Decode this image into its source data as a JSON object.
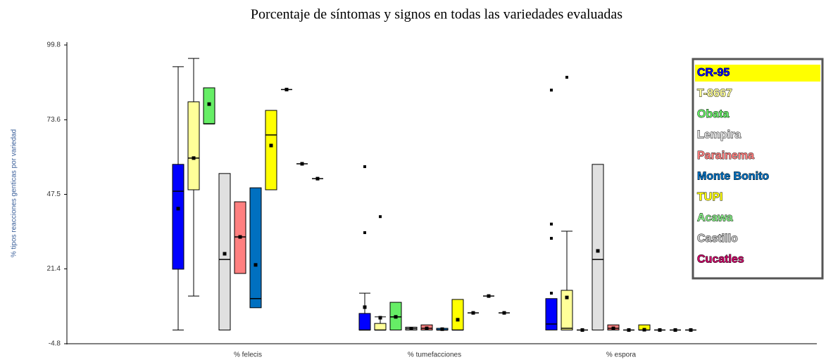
{
  "chart_data": {
    "type": "box",
    "title": "Porcentaje de síntomas y signos en todas las variedades evaluadas",
    "y_label": "% tipos reacciones genticas por variedad",
    "categories": [
      "% felecis",
      "% tumefacciones",
      "% espora"
    ],
    "ylim": [
      -4.8,
      99.8
    ],
    "yticks": [
      -4.8,
      21.4,
      47.5,
      73.6,
      99.8
    ],
    "series": [
      {
        "name": "CR-95",
        "color": "#0000ff",
        "boxes": [
          {
            "low": 0,
            "q1": 21.3,
            "median": 48.6,
            "q3": 58.0,
            "high": 92.2,
            "mean": 42.5,
            "outliers": []
          },
          {
            "low": 0,
            "q1": 0,
            "median": 0,
            "q3": 5.8,
            "high": 12.9,
            "mean": 8.0,
            "outliers": [
              57.2,
              34.1
            ]
          },
          {
            "low": 0,
            "q1": 0,
            "median": 2.1,
            "q3": 11.0,
            "high": 11.0,
            "mean": null,
            "outliers": [
              84.0,
              37.1,
              32.1,
              12.9
            ]
          }
        ]
      },
      {
        "name": "T-8667",
        "color": "#ffff99",
        "boxes": [
          {
            "low": 11.9,
            "q1": 49.1,
            "median": 60.2,
            "q3": 79.9,
            "high": 95.1,
            "mean": 60.2,
            "outliers": []
          },
          {
            "low": 0,
            "q1": 0,
            "median": 0,
            "q3": 2.3,
            "high": 4.6,
            "mean": 4.3,
            "outliers": [
              39.7
            ]
          },
          {
            "low": 0,
            "q1": 0,
            "median": 0.6,
            "q3": 13.9,
            "high": 34.6,
            "mean": 11.4,
            "outliers": [
              88.5
            ]
          }
        ]
      },
      {
        "name": "Obata",
        "color": "#66ee66",
        "boxes": [
          {
            "low": 72.2,
            "q1": 72.2,
            "median": 72.2,
            "q3": 84.8,
            "high": 84.8,
            "mean": 79.1,
            "outliers": []
          },
          {
            "low": 0,
            "q1": 0,
            "median": 4.6,
            "q3": 9.7,
            "high": 9.7,
            "mean": 4.6,
            "outliers": []
          },
          {
            "low": 0,
            "q1": 0,
            "median": 0,
            "q3": 0,
            "high": 0,
            "mean": 0,
            "outliers": []
          }
        ]
      },
      {
        "name": "Lempira",
        "color": "#e0e0e0",
        "boxes": [
          {
            "low": 0,
            "q1": 0,
            "median": 24.7,
            "q3": 54.8,
            "high": 54.8,
            "mean": 26.7,
            "outliers": []
          },
          {
            "low": 0,
            "q1": 0,
            "median": 0.5,
            "q3": 1.0,
            "high": 1.0,
            "mean": 0.5,
            "outliers": []
          },
          {
            "low": 0,
            "q1": 0,
            "median": 24.7,
            "q3": 58.0,
            "high": 58.0,
            "mean": 27.7,
            "outliers": []
          }
        ]
      },
      {
        "name": "Parainema",
        "color": "#ff8080",
        "boxes": [
          {
            "low": 19.8,
            "q1": 19.8,
            "median": 32.6,
            "q3": 44.9,
            "high": 44.9,
            "mean": 32.6,
            "outliers": []
          },
          {
            "low": 0,
            "q1": 0,
            "median": 0.6,
            "q3": 1.8,
            "high": 1.8,
            "mean": 0.6,
            "outliers": []
          },
          {
            "low": 0,
            "q1": 0,
            "median": 0.6,
            "q3": 1.8,
            "high": 1.8,
            "mean": 0.6,
            "outliers": []
          }
        ]
      },
      {
        "name": "Monte Bonito",
        "color": "#0070c0",
        "boxes": [
          {
            "low": 7.8,
            "q1": 7.8,
            "median": 11.0,
            "q3": 49.8,
            "high": 49.8,
            "mean": 22.8,
            "outliers": []
          },
          {
            "low": 0,
            "q1": 0,
            "median": 0,
            "q3": 0.6,
            "high": 0.6,
            "mean": 0.3,
            "outliers": []
          },
          {
            "low": 0,
            "q1": 0,
            "median": 0,
            "q3": 0,
            "high": 0,
            "mean": 0,
            "outliers": []
          }
        ]
      },
      {
        "name": "TUPI",
        "color": "#ffff00",
        "boxes": [
          {
            "low": 49.1,
            "q1": 49.1,
            "median": 68.3,
            "q3": 76.9,
            "high": 76.9,
            "mean": 64.6,
            "outliers": []
          },
          {
            "low": 0,
            "q1": 0,
            "median": 0,
            "q3": 10.7,
            "high": 10.7,
            "mean": 3.6,
            "outliers": []
          },
          {
            "low": 0,
            "q1": 0,
            "median": 0,
            "q3": 1.8,
            "high": 1.8,
            "mean": 0.1,
            "outliers": []
          }
        ]
      },
      {
        "name": "Acawa",
        "color": "#88ee88",
        "boxes": [
          {
            "low": 84.2,
            "q1": 84.2,
            "median": 84.2,
            "q3": 84.2,
            "high": 84.2,
            "mean": 84.2,
            "outliers": []
          },
          {
            "low": 6.0,
            "q1": 6.0,
            "median": 6.0,
            "q3": 6.0,
            "high": 6.0,
            "mean": 6.0,
            "outliers": []
          },
          {
            "low": 0,
            "q1": 0,
            "median": 0,
            "q3": 0,
            "high": 0,
            "mean": 0,
            "outliers": []
          }
        ]
      },
      {
        "name": "Castillo",
        "color": "#c8c8c8",
        "boxes": [
          {
            "low": 58.2,
            "q1": 58.2,
            "median": 58.2,
            "q3": 58.2,
            "high": 58.2,
            "mean": 58.2,
            "outliers": []
          },
          {
            "low": 11.9,
            "q1": 11.9,
            "median": 11.9,
            "q3": 11.9,
            "high": 11.9,
            "mean": 11.9,
            "outliers": []
          },
          {
            "low": 0,
            "q1": 0,
            "median": 0,
            "q3": 0,
            "high": 0,
            "mean": 0,
            "outliers": []
          }
        ]
      },
      {
        "name": "Cucatles",
        "color": "#cc0066",
        "boxes": [
          {
            "low": 53.0,
            "q1": 53.0,
            "median": 53.0,
            "q3": 53.0,
            "high": 53.0,
            "mean": 53.0,
            "outliers": []
          },
          {
            "low": 6.0,
            "q1": 6.0,
            "median": 6.0,
            "q3": 6.0,
            "high": 6.0,
            "mean": 6.0,
            "outliers": []
          },
          {
            "low": 0,
            "q1": 0,
            "median": 0,
            "q3": 0,
            "high": 0,
            "mean": 0,
            "outliers": []
          }
        ]
      }
    ]
  }
}
